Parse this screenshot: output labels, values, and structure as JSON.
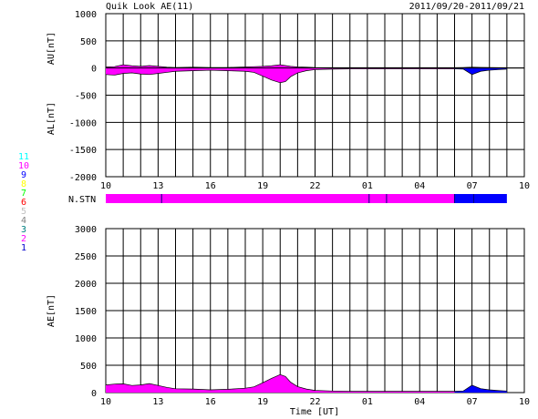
{
  "header": {
    "title": "Quik Look AE(11)",
    "date_range": "2011/09/20-2011/09/21"
  },
  "station_legend": {
    "labels": [
      "11",
      "10",
      "9",
      "8",
      "7",
      "6",
      "5",
      "4",
      "3",
      "2",
      "1"
    ],
    "colors": [
      "#00ffff",
      "#ff00ff",
      "#0000ff",
      "#ffff00",
      "#00ff00",
      "#ff0000",
      "#c0c0c0",
      "#808080",
      "#008080",
      "#ff00ff",
      "#0000cc"
    ]
  },
  "nstn_label": "N.STN",
  "chart_data": [
    {
      "type": "area",
      "ylabel_top": "AU[nT]",
      "ylabel_bottom": "AL[nT]",
      "xlabel": "",
      "x_ticks": [
        "10",
        "13",
        "16",
        "19",
        "22",
        "01",
        "04",
        "07",
        "10"
      ],
      "y_ticks": [
        "1000",
        "500",
        "0",
        "-500",
        "-1000",
        "-1500",
        "-2000"
      ],
      "x_range_hours": [
        10,
        34
      ],
      "ylim": [
        -2000,
        1000
      ],
      "grid": true,
      "series": [
        {
          "color": "#ff00ff",
          "x": [
            10.0,
            10.5,
            11.0,
            11.5,
            12.0,
            12.5,
            13.0,
            13.5,
            14.0,
            15.0,
            16.0,
            17.0,
            18.0,
            18.5,
            19.0,
            19.5,
            20.0,
            20.3,
            20.6,
            21.0,
            21.5,
            22.0,
            23.0,
            24.0,
            26.0,
            28.0,
            30.0
          ],
          "au": [
            20,
            25,
            60,
            40,
            30,
            45,
            30,
            15,
            10,
            15,
            10,
            10,
            20,
            25,
            30,
            40,
            60,
            45,
            30,
            20,
            15,
            10,
            8,
            8,
            8,
            8,
            8
          ],
          "al": [
            -120,
            -130,
            -100,
            -90,
            -110,
            -120,
            -100,
            -80,
            -60,
            -50,
            -40,
            -50,
            -60,
            -80,
            -150,
            -220,
            -270,
            -250,
            -160,
            -90,
            -50,
            -30,
            -20,
            -15,
            -15,
            -15,
            -15
          ]
        },
        {
          "color": "#0000ff",
          "x": [
            30.0,
            30.5,
            31.0,
            31.5,
            32.0,
            32.5,
            33.0
          ],
          "au": [
            8,
            10,
            15,
            12,
            10,
            8,
            8
          ],
          "al": [
            -15,
            -20,
            -120,
            -60,
            -40,
            -30,
            -20
          ]
        }
      ]
    },
    {
      "type": "bar",
      "name": "N.STN",
      "segments": [
        {
          "x0": 10.0,
          "x1": 30.0,
          "stations": 10,
          "color": "#ff00ff"
        },
        {
          "x0": 30.0,
          "x1": 33.0,
          "stations": 9,
          "color": "#0000ff"
        }
      ],
      "dividers": [
        13.2,
        25.1,
        26.1,
        30.0,
        31.1
      ]
    },
    {
      "type": "area",
      "ylabel": "AE[nT]",
      "xlabel": "Time [UT]",
      "x_ticks": [
        "10",
        "13",
        "16",
        "19",
        "22",
        "01",
        "04",
        "07",
        "10"
      ],
      "y_ticks": [
        "3000",
        "2500",
        "2000",
        "1500",
        "1000",
        "500",
        "0"
      ],
      "x_range_hours": [
        10,
        34
      ],
      "ylim": [
        0,
        3000
      ],
      "grid": true,
      "series": [
        {
          "color": "#ff00ff",
          "x": [
            10.0,
            10.5,
            11.0,
            11.5,
            12.0,
            12.5,
            13.0,
            13.5,
            14.0,
            15.0,
            16.0,
            17.0,
            18.0,
            18.5,
            19.0,
            19.5,
            20.0,
            20.3,
            20.6,
            21.0,
            21.5,
            22.0,
            23.0,
            24.0,
            26.0,
            28.0,
            30.0
          ],
          "values": [
            140,
            155,
            160,
            130,
            140,
            165,
            130,
            95,
            70,
            65,
            50,
            60,
            80,
            105,
            180,
            260,
            330,
            295,
            190,
            110,
            65,
            40,
            28,
            23,
            23,
            23,
            23
          ]
        },
        {
          "color": "#0000ff",
          "x": [
            30.0,
            30.5,
            31.0,
            31.5,
            32.0,
            32.5,
            33.0
          ],
          "values": [
            23,
            30,
            135,
            72,
            50,
            38,
            28
          ]
        }
      ]
    }
  ]
}
